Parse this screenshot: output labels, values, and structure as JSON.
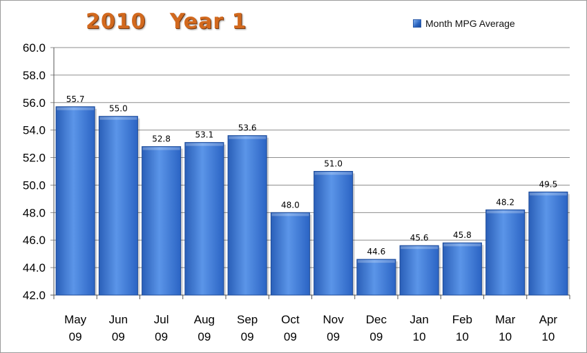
{
  "chart_data": {
    "type": "bar",
    "title": "2010   Year 1",
    "categories": [
      [
        "May",
        "09"
      ],
      [
        "Jun",
        "09"
      ],
      [
        "Jul",
        "09"
      ],
      [
        "Aug",
        "09"
      ],
      [
        "Sep",
        "09"
      ],
      [
        "Oct",
        "09"
      ],
      [
        "Nov",
        "09"
      ],
      [
        "Dec",
        "09"
      ],
      [
        "Jan",
        "10"
      ],
      [
        "Feb",
        "10"
      ],
      [
        "Mar",
        "10"
      ],
      [
        "Apr",
        "10"
      ]
    ],
    "series": [
      {
        "name": "Month MPG Average",
        "values": [
          55.7,
          55.0,
          52.8,
          53.1,
          53.6,
          48.0,
          51.0,
          44.6,
          45.6,
          45.8,
          48.2,
          49.5
        ]
      }
    ],
    "data_labels": [
      "55.7",
      "55.0",
      "52.8",
      "53.1",
      "53.6",
      "48.0",
      "51.0",
      "44.6",
      "45.6",
      "45.8",
      "48.2",
      "49.5"
    ],
    "ylim": [
      42,
      60
    ],
    "yticks": [
      "42.0",
      "44.0",
      "46.0",
      "48.0",
      "50.0",
      "52.0",
      "54.0",
      "56.0",
      "58.0",
      "60.0"
    ],
    "grid": true,
    "legend": "top-right",
    "colors": {
      "bar": "#2f6fd0",
      "bar_dark": "#1c4a98",
      "grid": "#8c8c8c",
      "title": "#d2691e"
    }
  }
}
